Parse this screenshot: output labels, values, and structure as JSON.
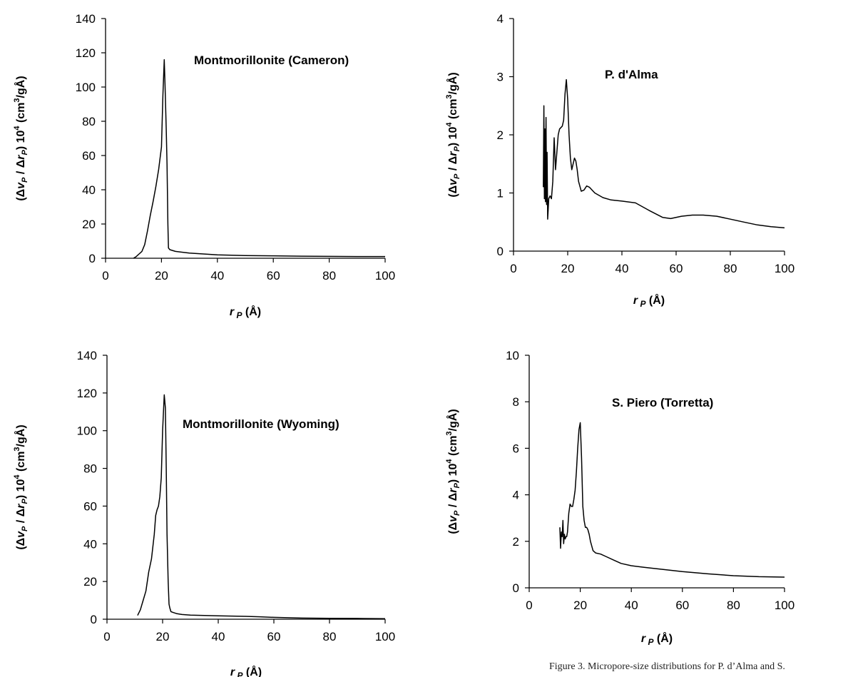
{
  "caption": "Figure 3. Micropore-size distributions for P. d’Alma and S.",
  "chart_data": [
    {
      "type": "line",
      "title": "Montmorillonite (Cameron)",
      "xlabel": "r_P (Å)",
      "ylabel": "(Δv_P / Δr_P) 10^4 (cm³/gÅ)",
      "xlim": [
        0,
        100
      ],
      "ylim": [
        0,
        140
      ],
      "xticks": [
        0,
        20,
        40,
        60,
        80,
        100
      ],
      "yticks": [
        0,
        20,
        40,
        60,
        80,
        100,
        120,
        140
      ],
      "grid": false,
      "series": [
        {
          "x": [
            10,
            11,
            12,
            13,
            14,
            15,
            16,
            17,
            18,
            19,
            20,
            20.5,
            21,
            21.3,
            21.7,
            22,
            22.3,
            22.5,
            23,
            25,
            30,
            35,
            40,
            50,
            60,
            70,
            80,
            90,
            100
          ],
          "y": [
            0,
            1,
            2.5,
            4,
            8,
            16,
            25,
            33,
            42,
            52,
            65,
            95,
            116,
            100,
            75,
            55,
            20,
            6,
            5,
            4,
            3,
            2.5,
            2,
            1.6,
            1.4,
            1.2,
            1.1,
            1,
            1
          ]
        }
      ]
    },
    {
      "type": "line",
      "title": "P. d'Alma",
      "xlabel": "r_P (Å)",
      "ylabel": "(Δv_P / Δr_P) 10^4 (cm³/gÅ)",
      "xlim": [
        0,
        100
      ],
      "ylim": [
        0,
        4
      ],
      "xticks": [
        0,
        20,
        40,
        60,
        80,
        100
      ],
      "yticks": [
        0,
        1,
        2,
        3,
        4
      ],
      "grid": false,
      "series": [
        {
          "x": [
            11,
            11.2,
            11.4,
            11.6,
            11.8,
            12,
            12.2,
            12.4,
            12.6,
            12.8,
            13,
            13.5,
            14,
            14.5,
            15,
            15.5,
            16,
            16.5,
            17,
            18,
            18.5,
            19,
            19.5,
            20,
            20.5,
            21,
            21.5,
            22,
            22.5,
            23,
            23.5,
            24,
            25,
            26,
            27,
            28,
            30,
            33,
            36,
            40,
            45,
            50,
            55,
            58,
            62,
            66,
            70,
            75,
            80,
            85,
            90,
            95,
            100
          ],
          "y": [
            1.1,
            2.5,
            0.9,
            2.1,
            0.85,
            2.3,
            0.8,
            1.7,
            0.55,
            0.7,
            0.9,
            0.95,
            0.9,
            1.2,
            1.95,
            1.4,
            1.7,
            2.0,
            2.1,
            2.15,
            2.25,
            2.7,
            2.95,
            2.6,
            2.0,
            1.6,
            1.4,
            1.5,
            1.6,
            1.55,
            1.4,
            1.2,
            1.03,
            1.05,
            1.12,
            1.1,
            1.0,
            0.92,
            0.88,
            0.86,
            0.83,
            0.7,
            0.58,
            0.56,
            0.6,
            0.62,
            0.62,
            0.6,
            0.55,
            0.5,
            0.45,
            0.42,
            0.4
          ]
        }
      ]
    },
    {
      "type": "line",
      "title": "Montmorillonite (Wyoming)",
      "xlabel": "r_P (Å)",
      "ylabel": "(Δv_P / Δr_P) 10^4 (cm³/gÅ)",
      "xlim": [
        0,
        100
      ],
      "ylim": [
        0,
        140
      ],
      "xticks": [
        0,
        20,
        40,
        60,
        80,
        100
      ],
      "yticks": [
        0,
        20,
        40,
        60,
        80,
        100,
        120,
        140
      ],
      "grid": false,
      "series": [
        {
          "x": [
            11,
            12,
            13,
            14,
            15,
            16,
            17,
            17.5,
            18,
            18.5,
            19,
            19.5,
            20,
            20.3,
            20.6,
            21,
            21.3,
            21.6,
            22,
            22.3,
            22.6,
            23,
            24,
            25,
            27,
            30,
            35,
            40,
            50,
            55,
            60,
            70,
            80,
            90,
            100
          ],
          "y": [
            2,
            5,
            10,
            15,
            25,
            32,
            45,
            55,
            58,
            60,
            65,
            75,
            100,
            110,
            119,
            112,
            80,
            45,
            20,
            8,
            6,
            4,
            3.5,
            3,
            2.5,
            2.2,
            2,
            1.8,
            1.5,
            1.3,
            1,
            0.6,
            0.5,
            0.4,
            0.3
          ]
        }
      ]
    },
    {
      "type": "line",
      "title": "S. Piero (Torretta)",
      "xlabel": "r_P (Å)",
      "ylabel": "(Δv_P / Δr_P) 10^4 (cm³/gÅ)",
      "xlim": [
        0,
        100
      ],
      "ylim": [
        0,
        10
      ],
      "xticks": [
        0,
        20,
        40,
        60,
        80,
        100
      ],
      "yticks": [
        0,
        2,
        4,
        6,
        8,
        10
      ],
      "grid": false,
      "series": [
        {
          "x": [
            12,
            12.3,
            12.6,
            12.9,
            13.2,
            13.5,
            13.8,
            14.1,
            14.4,
            14.7,
            15,
            15.5,
            16,
            16.5,
            17,
            17.5,
            18,
            18.5,
            19,
            19.5,
            20,
            20.5,
            21,
            21.5,
            22,
            22.5,
            23,
            23.5,
            24,
            25,
            26,
            28,
            30,
            33,
            36,
            40,
            45,
            50,
            55,
            60,
            70,
            80,
            90,
            100
          ],
          "y": [
            2.6,
            1.7,
            2.4,
            2.2,
            2.9,
            1.9,
            2.3,
            2.1,
            2.2,
            2.2,
            2.4,
            3.2,
            3.6,
            3.5,
            3.5,
            3.8,
            4.2,
            5.0,
            6.0,
            6.8,
            7.1,
            5.6,
            3.5,
            2.9,
            2.6,
            2.6,
            2.5,
            2.3,
            2.0,
            1.6,
            1.5,
            1.45,
            1.35,
            1.2,
            1.05,
            0.95,
            0.88,
            0.82,
            0.76,
            0.7,
            0.6,
            0.52,
            0.48,
            0.46
          ]
        }
      ]
    }
  ]
}
